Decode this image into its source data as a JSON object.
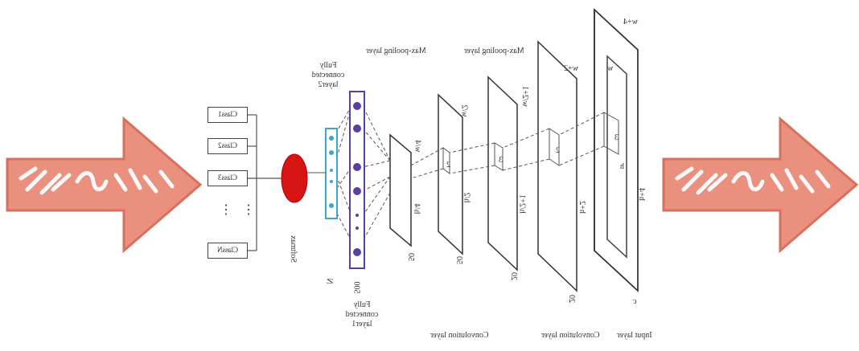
{
  "decor": {
    "arrow_color": "#e9907f",
    "arrow_edge_color": "#d9705e",
    "arrow_icon": "hatched-arrow-right"
  },
  "diagram": {
    "layers": {
      "input": "Input layer",
      "conv1": "Convolution layer",
      "conv2": "Convolution layer",
      "pool1": "Max-pooling layer",
      "pool2": "Max-pooling layer",
      "fc1": "Fully connected layer1",
      "fc2": "Fully connected layer2",
      "softmax": "Softmax"
    },
    "dims": {
      "input_w": "w+4",
      "input_h": "h+4",
      "input_c": "c",
      "input_inner_w": "w",
      "input_inner_h": "h",
      "conv1_w": "w+2",
      "conv1_h": "h+2",
      "conv1_d": "20",
      "pool1_w": "w/2+1",
      "pool1_h": "h/2+1",
      "pool1_d": "20",
      "conv2_w": "w/2",
      "conv2_h": "h/2",
      "conv2_d": "50",
      "pool2_w": "w/4",
      "pool2_h": "h/4",
      "pool2_d": "50",
      "fc1_n": "500",
      "fc2_n": "N",
      "kernel": "3",
      "pool_k": "2"
    },
    "classes": [
      "Class1",
      "Class2",
      "Class3",
      "ClassN"
    ],
    "ellipsis": "⋮"
  },
  "colors": {
    "softmax_fill": "#d81515",
    "fc1_border": "#5a3fa0",
    "fc1_node": "#5a3fa0",
    "fc2_border": "#39a9c7",
    "line": "#555555"
  }
}
